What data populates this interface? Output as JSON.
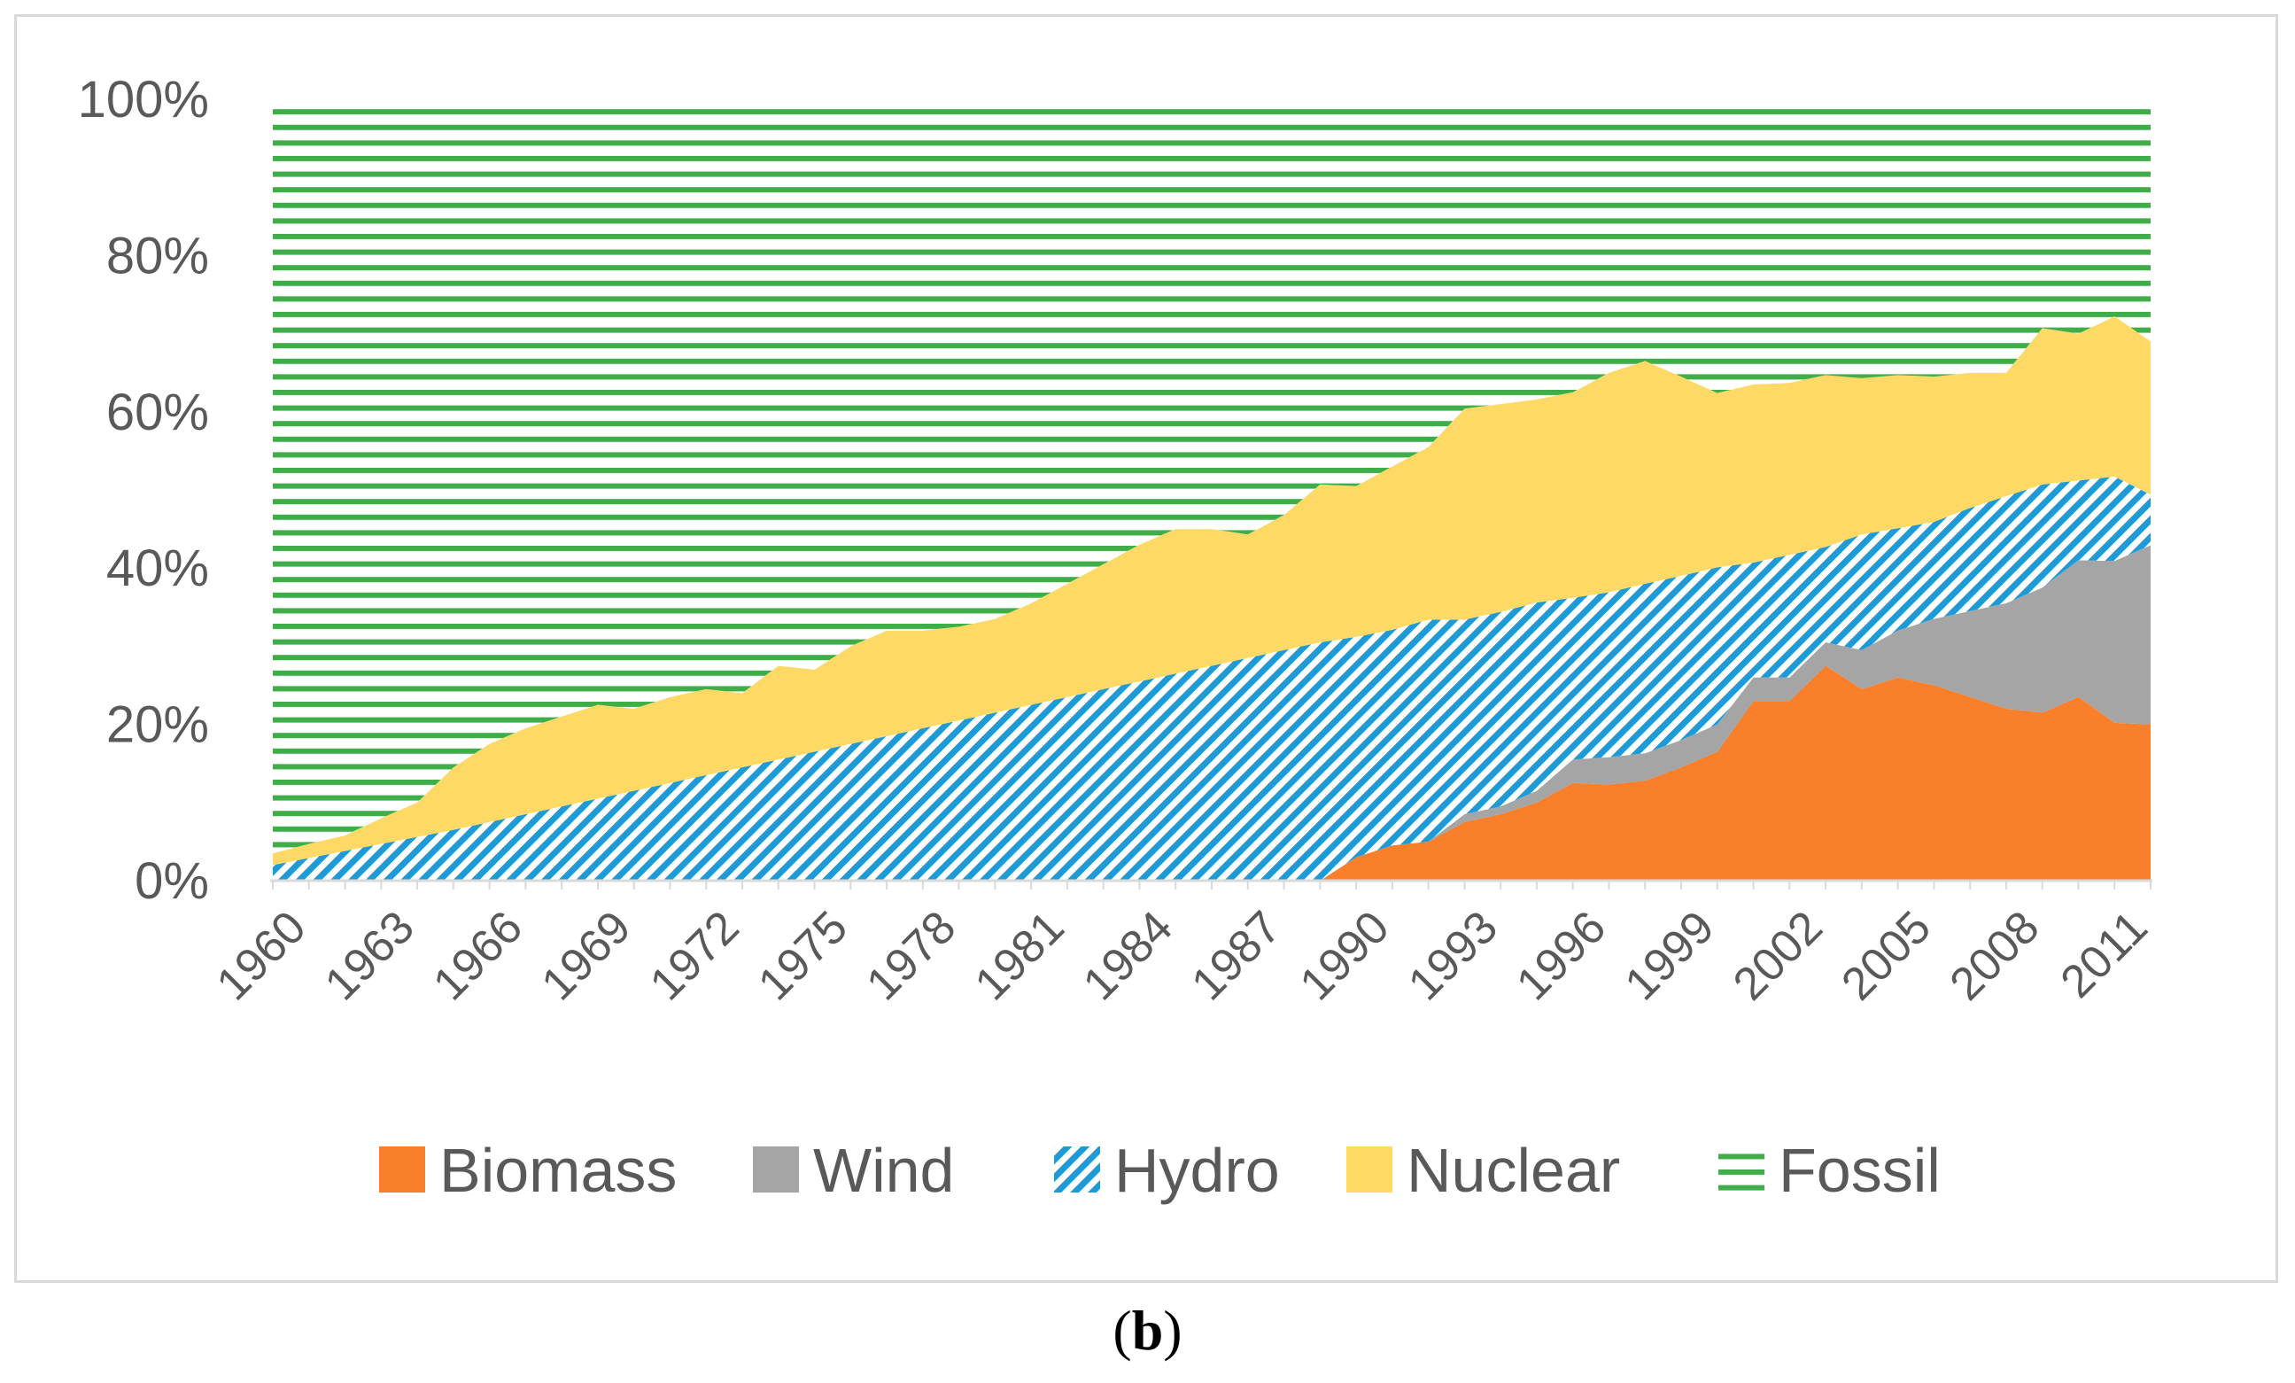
{
  "caption": {
    "open": "(",
    "letter": "b",
    "close": ")"
  },
  "chart_data": {
    "type": "area",
    "stacked": true,
    "normalized": true,
    "title": "",
    "xlabel": "",
    "ylabel": "",
    "ylim": [
      0,
      100
    ],
    "y_ticks": [
      "0%",
      "20%",
      "40%",
      "60%",
      "80%",
      "100%"
    ],
    "x": [
      1960,
      1961,
      1962,
      1963,
      1964,
      1965,
      1966,
      1967,
      1968,
      1969,
      1970,
      1971,
      1972,
      1973,
      1974,
      1975,
      1976,
      1977,
      1978,
      1979,
      1980,
      1981,
      1982,
      1983,
      1984,
      1985,
      1986,
      1987,
      1988,
      1989,
      1990,
      1991,
      1992,
      1993,
      1994,
      1995,
      1996,
      1997,
      1998,
      1999,
      2000,
      2001,
      2002,
      2003,
      2004,
      2005,
      2006,
      2007,
      2008,
      2009,
      2010,
      2011,
      2012
    ],
    "x_tick_labels": [
      "1960",
      "1963",
      "1966",
      "1969",
      "1972",
      "1975",
      "1978",
      "1981",
      "1984",
      "1987",
      "1990",
      "1993",
      "1996",
      "1999",
      "2002",
      "2005",
      "2008",
      "2011"
    ],
    "legend_position": "bottom",
    "series": [
      {
        "name": "Biomass",
        "color": "#f97f2a",
        "pattern": "solid",
        "values": [
          0,
          0,
          0,
          0,
          0,
          0,
          0,
          0,
          0,
          0,
          0,
          0,
          0,
          0,
          0,
          0,
          0,
          0,
          0,
          0,
          0,
          0,
          0,
          0,
          0,
          0,
          0,
          0,
          0,
          0,
          3,
          4.5,
          5,
          7.5,
          8.5,
          10,
          12.5,
          12.3,
          12.8,
          14.5,
          16.5,
          23,
          23,
          27.5,
          24.5,
          26,
          25,
          23.5,
          22,
          21.5,
          23.5,
          20,
          19.8
        ]
      },
      {
        "name": "Wind",
        "color": "#a5a5a5",
        "pattern": "solid",
        "values": [
          0,
          0,
          0,
          0,
          0,
          0,
          0,
          0,
          0,
          0,
          0,
          0,
          0,
          0,
          0,
          0,
          0,
          0,
          0,
          0,
          0,
          0,
          0,
          0,
          0,
          0,
          0,
          0,
          0,
          0,
          0,
          0,
          0,
          1,
          1,
          1.5,
          3,
          3.5,
          3.5,
          3.5,
          3.5,
          3,
          3,
          3,
          5,
          6,
          8.5,
          11,
          13.5,
          16,
          17.5,
          20.5,
          22.7
        ]
      },
      {
        "name": "Hydro",
        "color": "#1e9ad6",
        "pattern": "hatched",
        "values": [
          2,
          2.9,
          3.8,
          4.7,
          5.6,
          6.5,
          7.5,
          8.5,
          9.5,
          10.5,
          11.5,
          12.5,
          13.5,
          14.5,
          15.5,
          16.5,
          17.5,
          18.5,
          19.5,
          20.5,
          21.5,
          22.5,
          23.5,
          24.5,
          25.5,
          26.5,
          27.5,
          28.5,
          29.5,
          30.5,
          28.2,
          27.6,
          28.4,
          24.9,
          24.9,
          24.1,
          20.7,
          21.1,
          21.7,
          21,
          20.1,
          14.7,
          15.7,
          12.2,
          14.8,
          13.1,
          12.4,
          13.2,
          13.7,
          13.2,
          10.2,
          10.7,
          6.4
        ]
      },
      {
        "name": "Nuclear",
        "color": "#ffd966",
        "pattern": "solid",
        "values": [
          1.5,
          1.8,
          2,
          3.3,
          4.4,
          8,
          10,
          11,
          11.5,
          12,
          10.5,
          11,
          11,
          9.5,
          12,
          10.5,
          12.5,
          13.5,
          12.5,
          12,
          12,
          13,
          14.5,
          16,
          17.5,
          18.5,
          17.5,
          15.8,
          17.3,
          20.2,
          19.3,
          20.9,
          22.1,
          27,
          26.6,
          26,
          26.3,
          28.1,
          28.5,
          25.5,
          22.3,
          22.8,
          22,
          22,
          20,
          19.6,
          18.6,
          17.3,
          15.8,
          20,
          18.8,
          20.3,
          19.4
        ]
      },
      {
        "name": "Fossil",
        "color": "#3fae49",
        "pattern": "horizontal-stripes",
        "values": [
          96.5,
          95.3,
          94.2,
          92,
          90,
          85.5,
          82.5,
          80.5,
          79,
          77.5,
          78,
          76.5,
          75.5,
          76,
          72.5,
          73,
          70,
          68,
          68,
          67.5,
          66.5,
          64.5,
          62,
          59.5,
          57,
          55,
          55,
          55.7,
          53.2,
          49.3,
          49.5,
          47,
          44.5,
          39.6,
          39,
          38.4,
          37.5,
          35,
          33.5,
          35.5,
          37.6,
          36.5,
          36.3,
          35.3,
          35.7,
          35.3,
          35.5,
          35,
          35,
          29.3,
          30,
          27.5,
          30.7
        ]
      }
    ]
  }
}
